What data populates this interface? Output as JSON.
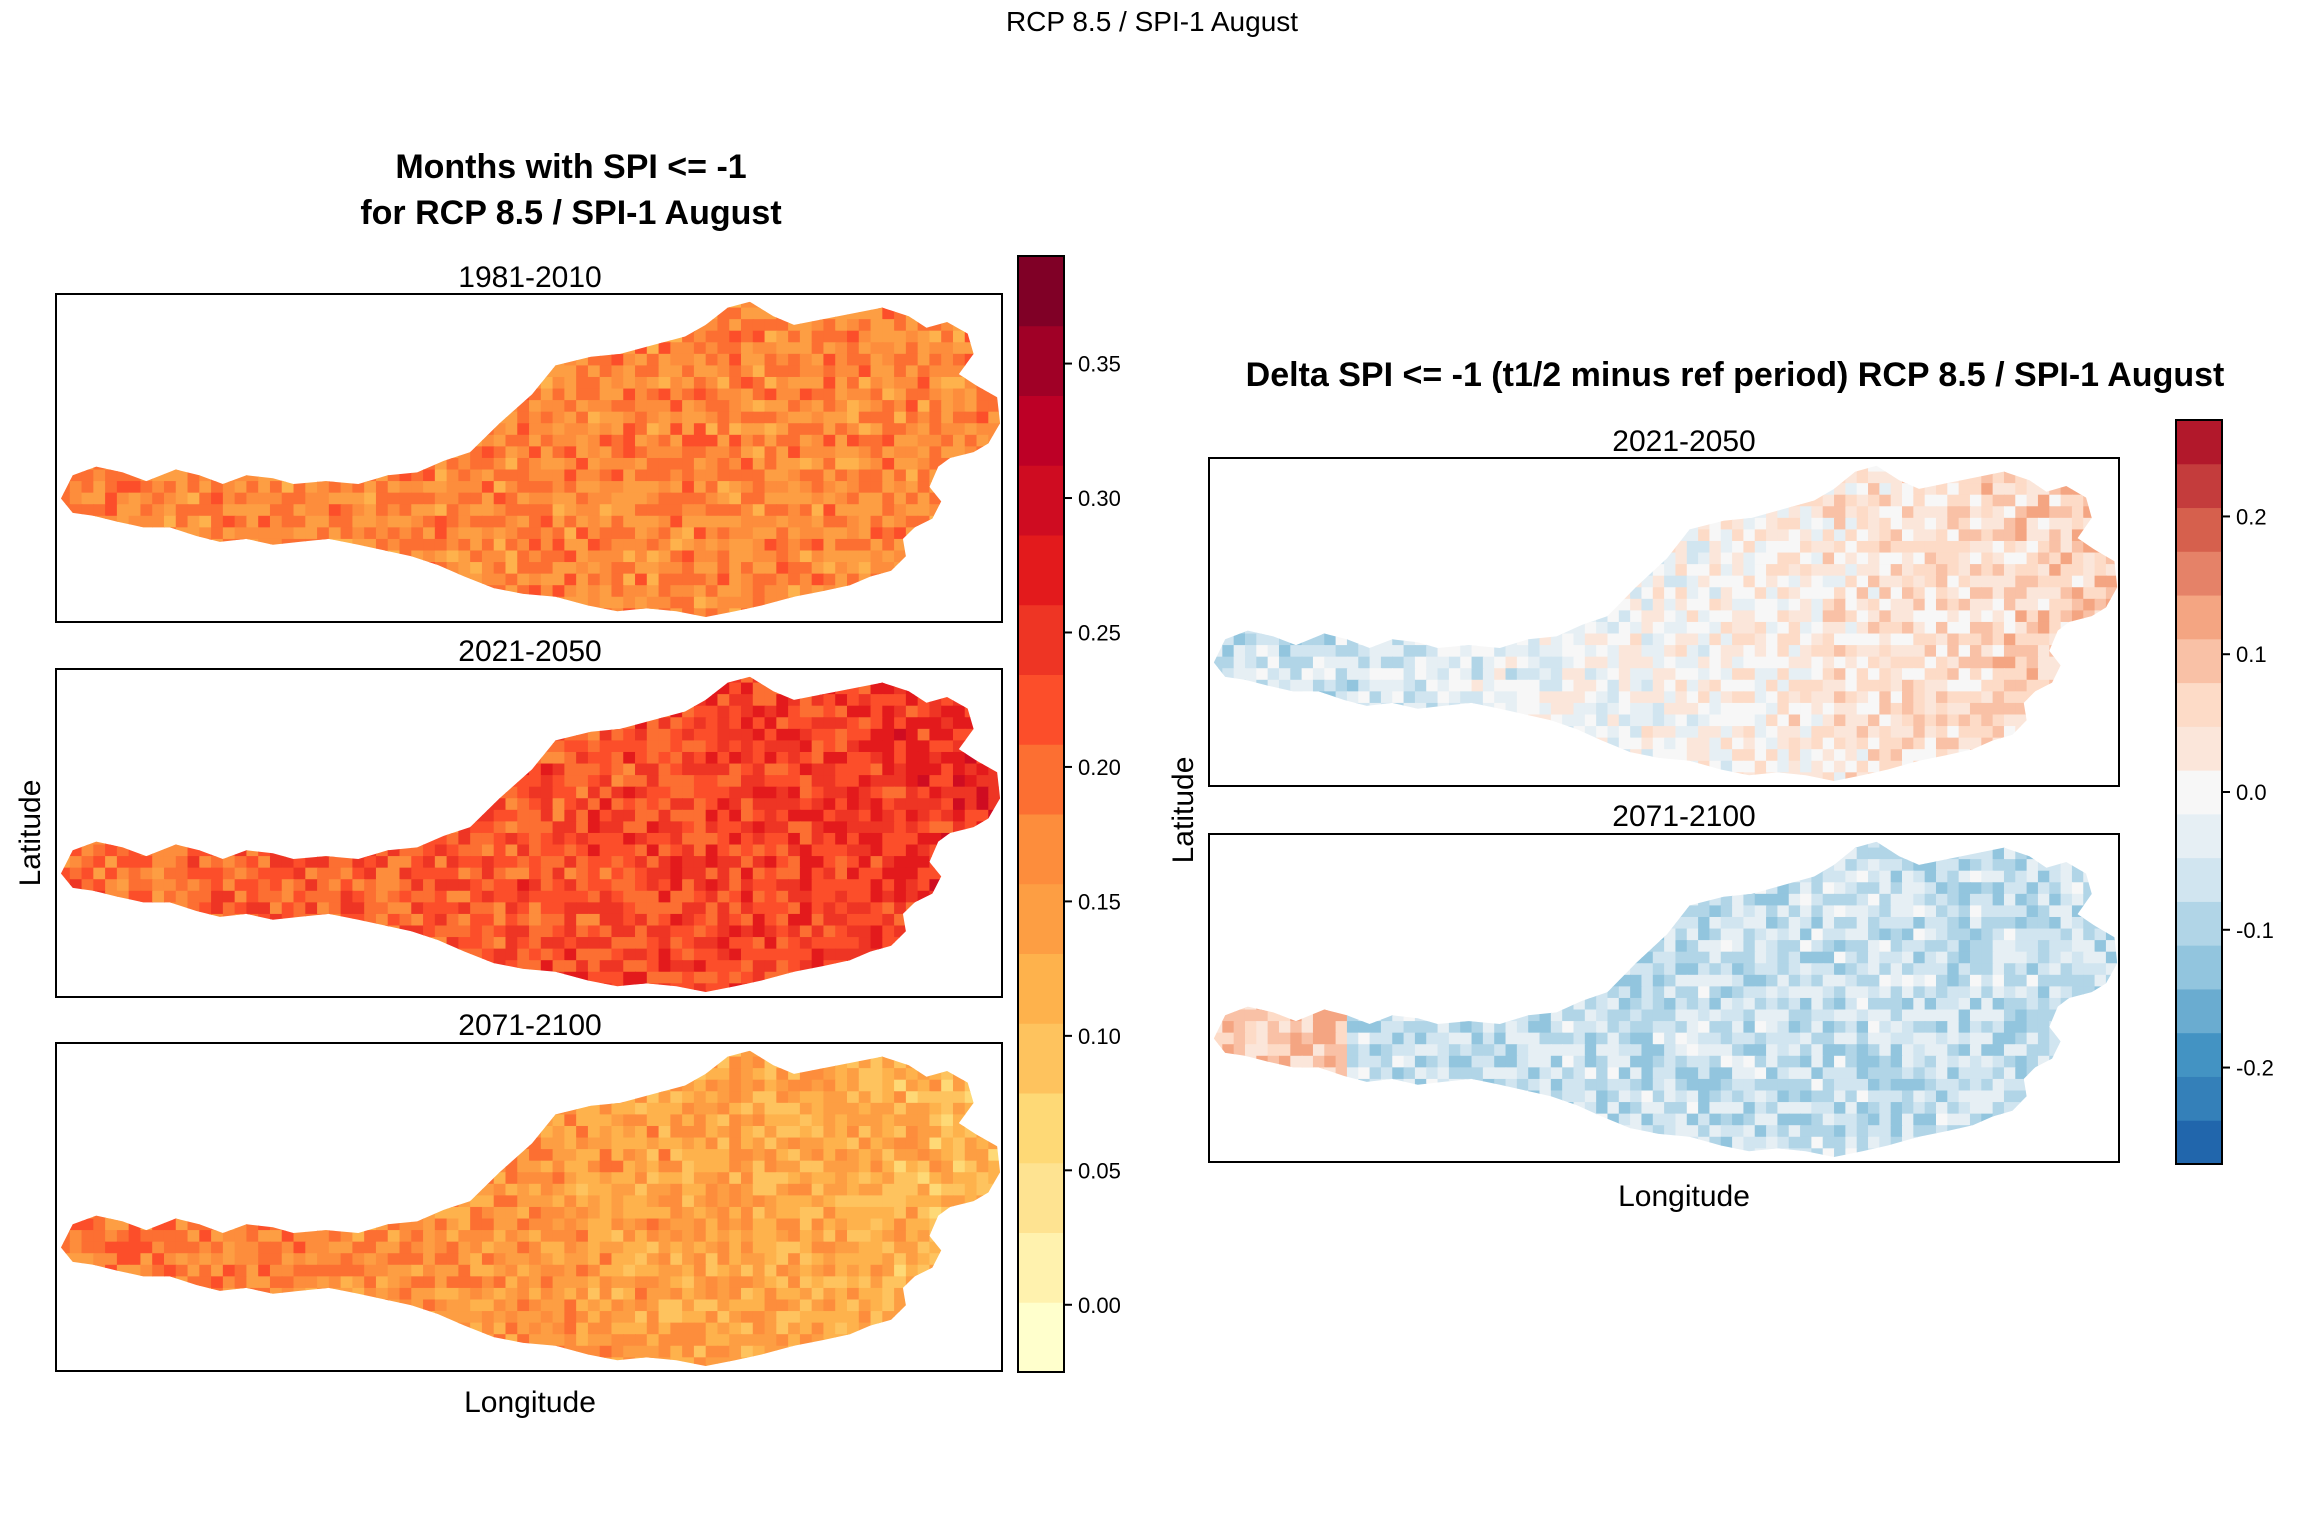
{
  "figure": {
    "main_title": "RCP 8.5 / SPI-1 August"
  },
  "left_panel": {
    "title_line1": "Months with SPI <= -1",
    "title_line2": "for RCP 8.5 / SPI-1 August",
    "xlabel": "Longitude",
    "ylabel": "Latitude",
    "maps": [
      {
        "period": "1981-2010"
      },
      {
        "period": "2021-2050"
      },
      {
        "period": "2071-2100"
      }
    ],
    "colorbar": {
      "ticks": [
        "0.00",
        "0.05",
        "0.10",
        "0.15",
        "0.20",
        "0.25",
        "0.30",
        "0.35"
      ]
    }
  },
  "right_panel": {
    "title": "Delta SPI <= -1 (t1/2 minus ref period) RCP 8.5 / SPI-1 August",
    "xlabel": "Longitude",
    "ylabel": "Latitude",
    "maps": [
      {
        "period": "2021-2050"
      },
      {
        "period": "2071-2100"
      }
    ],
    "colorbar": {
      "ticks": [
        "-0.2",
        "-0.1",
        "0.0",
        "0.1",
        "0.2"
      ]
    }
  },
  "chart_data": [
    {
      "type": "heatmap",
      "title": "Months with SPI <= -1 for RCP 8.5 / SPI-1 August",
      "xlabel": "Longitude",
      "ylabel": "Latitude",
      "panels": [
        "1981-2010",
        "2021-2050",
        "2071-2100"
      ],
      "colorbar_range": [
        -0.025,
        0.39
      ],
      "colorbar_ticks": [
        0.0,
        0.05,
        0.1,
        0.15,
        0.2,
        0.25,
        0.3,
        0.35
      ],
      "palette": [
        "#FFFFCC",
        "#FFF2AE",
        "#FEE391",
        "#FED976",
        "#FEC35E",
        "#FEB24C",
        "#FD9E43",
        "#FD8D3C",
        "#FC6F32",
        "#FC4E2A",
        "#EE3524",
        "#E31A1C",
        "#CF0C21",
        "#BD0026",
        "#A00026",
        "#800026"
      ],
      "typical_values": [
        0.17,
        0.19,
        0.14
      ]
    },
    {
      "type": "heatmap",
      "title": "Delta SPI <= -1 (t1/2 minus ref period) RCP 8.5 / SPI-1 August",
      "xlabel": "Longitude",
      "ylabel": "Latitude",
      "panels": [
        "2021-2050",
        "2071-2100"
      ],
      "colorbar_range": [
        -0.27,
        0.27
      ],
      "colorbar_ticks": [
        -0.2,
        -0.1,
        0.0,
        0.1,
        0.2
      ],
      "palette": [
        "#2166AC",
        "#3480B9",
        "#4393C3",
        "#6AACD0",
        "#92C5DE",
        "#B1D5E7",
        "#D1E5F0",
        "#E6EFF4",
        "#F7F7F7",
        "#FBE6DA",
        "#FDDBC7",
        "#F9C1A6",
        "#F4A582",
        "#E58268",
        "#D6604D",
        "#C43C3C",
        "#B2182B"
      ],
      "typical_values": [
        0.0,
        -0.04
      ]
    }
  ]
}
